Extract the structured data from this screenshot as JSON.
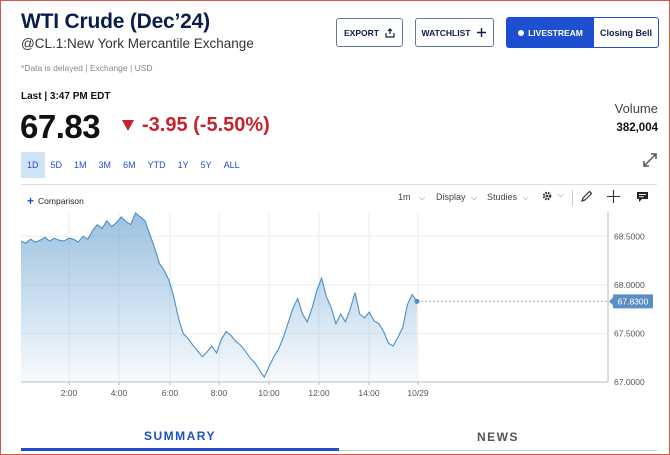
{
  "header": {
    "title": "WTI Crude (Dec’24)",
    "subtitle": "@CL.1:New York Mercantile Exchange",
    "delayed_note": "*Data is delayed | Exchange | USD"
  },
  "actions": {
    "export_label": "EXPORT",
    "watchlist_label": "WATCHLIST",
    "livestream_label": "LIVESTREAM",
    "closing_bell_label": "Closing Bell"
  },
  "quote": {
    "last_label": "Last | 3:47 PM EDT",
    "price": "67.83",
    "change": "-3.95 (-5.50%)",
    "volume_label": "Volume",
    "volume_value": "382,004"
  },
  "ranges": [
    "1D",
    "5D",
    "1M",
    "3M",
    "6M",
    "YTD",
    "1Y",
    "5Y",
    "ALL"
  ],
  "active_range": "1D",
  "toolbar": {
    "comparison_label": "Comparison",
    "interval_label": "1m",
    "display_label": "Display",
    "studies_label": "Studies"
  },
  "tabs": {
    "summary": "SUMMARY",
    "news": "NEWS"
  },
  "colors": {
    "accent": "#1d4fd0",
    "negative": "#c8232c",
    "line": "#4a8fc7",
    "title": "#0b1d4a"
  },
  "chart_data": {
    "type": "area",
    "x_ticks": [
      "2:00",
      "4:00",
      "6:00",
      "8:00",
      "10:00",
      "12:00",
      "14:00",
      "10/29"
    ],
    "y_ticks": [
      "68.5000",
      "68.0000",
      "67.5000",
      "67.0000"
    ],
    "ylim": [
      67.0,
      68.75
    ],
    "last_value_label": "67.8300",
    "last_value": 67.83,
    "series": [
      {
        "values": [
          68.45,
          68.43,
          68.47,
          68.44,
          68.46,
          68.49,
          68.45,
          68.48,
          68.46,
          68.45,
          68.48,
          68.47,
          68.44,
          68.5,
          68.47,
          68.56,
          68.62,
          68.58,
          68.66,
          68.6,
          68.64,
          68.7,
          68.65,
          68.62,
          68.74,
          68.7,
          68.66,
          68.52,
          68.38,
          68.22,
          68.15,
          68.05,
          67.88,
          67.66,
          67.5,
          67.45,
          67.38,
          67.32,
          67.26,
          67.31,
          67.37,
          67.3,
          67.44,
          67.52,
          67.48,
          67.42,
          67.38,
          67.32,
          67.25,
          67.2,
          67.12,
          67.05,
          67.16,
          67.26,
          67.34,
          67.46,
          67.61,
          67.76,
          67.86,
          67.7,
          67.62,
          67.76,
          67.94,
          68.07,
          67.88,
          67.77,
          67.6,
          67.7,
          67.62,
          67.75,
          67.92,
          67.7,
          67.66,
          67.72,
          67.63,
          67.6,
          67.52,
          67.4,
          67.37,
          67.46,
          67.56,
          67.8,
          67.9,
          67.83
        ]
      }
    ]
  }
}
